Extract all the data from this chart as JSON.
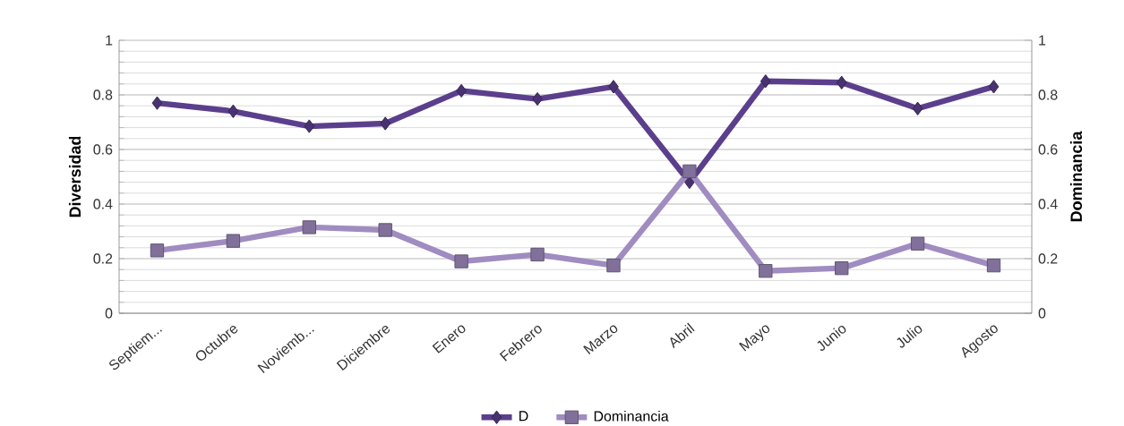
{
  "chart_data": {
    "type": "line",
    "ylabel": "Diversidad",
    "y2label": "Dominancia",
    "categories": [
      "Septiem...",
      "Octubre",
      "Noviemb...",
      "Diciembre",
      "Enero",
      "Febrero",
      "Marzo",
      "Abril",
      "Mayo",
      "Junio",
      "Julio",
      "Agosto"
    ],
    "series": [
      {
        "name": "D",
        "color": "#5b3f8c",
        "marker": "diamond",
        "values": [
          0.77,
          0.74,
          0.685,
          0.695,
          0.815,
          0.785,
          0.83,
          0.48,
          0.85,
          0.845,
          0.75,
          0.83
        ]
      },
      {
        "name": "Dominancia",
        "color": "#a08cc0",
        "marker": "square",
        "axis": "y2",
        "values": [
          0.23,
          0.265,
          0.315,
          0.305,
          0.19,
          0.215,
          0.175,
          0.52,
          0.155,
          0.165,
          0.255,
          0.175
        ]
      }
    ],
    "ylim": [
      0,
      1
    ],
    "yticks": [
      0,
      0.2,
      0.4,
      0.6,
      0.8,
      1
    ],
    "y2lim": [
      0,
      1
    ],
    "y2ticks": [
      0,
      0.2,
      0.4,
      0.6,
      0.8,
      1
    ],
    "grid": "y",
    "legend": "bottom",
    "line_style": "solid"
  }
}
